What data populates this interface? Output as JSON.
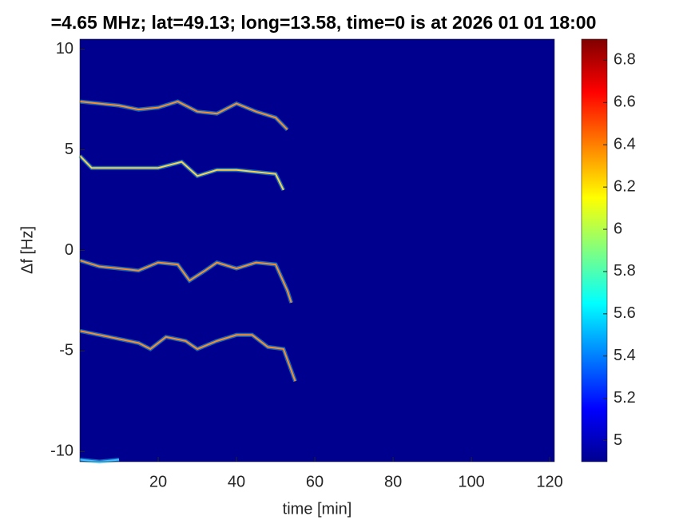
{
  "chart_data": {
    "type": "spectrogram",
    "title": "=4.65 MHz;  lat=49.13; long=13.58, time=0 is at 2026 01 01 18:00",
    "x_label": "time [min]",
    "y_label": "Δf [Hz]",
    "xlim": [
      0,
      121.2
    ],
    "xticks": [
      20,
      40,
      60,
      80,
      100,
      120
    ],
    "ylim": [
      -10.5,
      10.5
    ],
    "yticks": [
      -10,
      -5,
      0,
      5,
      10
    ],
    "background_color": "#00008f",
    "colorbar": {
      "clim": [
        4.9,
        6.9
      ],
      "ticks": [
        5,
        5.2,
        5.4,
        5.6,
        5.8,
        6,
        6.2,
        6.4,
        6.6,
        6.8
      ],
      "colormap": [
        "#00008f",
        "#0000ff",
        "#0080ff",
        "#00ffff",
        "#80ff80",
        "#ffff00",
        "#ff8000",
        "#ff0000",
        "#800000"
      ]
    },
    "traces": [
      {
        "color": "#ff8a20",
        "x": [
          0,
          5,
          10,
          15,
          20,
          25,
          30,
          35,
          40,
          45,
          50,
          53
        ],
        "values": [
          7.4,
          7.3,
          7.2,
          7.0,
          7.1,
          7.4,
          6.9,
          6.8,
          7.3,
          6.9,
          6.6,
          6.0
        ]
      },
      {
        "color": "#ffd040",
        "x": [
          0,
          3,
          10,
          20,
          26,
          30,
          35,
          40,
          45,
          50,
          52
        ],
        "values": [
          4.7,
          4.1,
          4.1,
          4.1,
          4.4,
          3.7,
          4.0,
          4.0,
          3.9,
          3.8,
          3.0
        ]
      },
      {
        "color": "#ff8a20",
        "x": [
          0,
          5,
          10,
          15,
          20,
          25,
          28,
          32,
          35,
          40,
          45,
          50,
          53,
          54
        ],
        "values": [
          -0.5,
          -0.8,
          -0.9,
          -1.0,
          -0.6,
          -0.7,
          -1.5,
          -1.0,
          -0.6,
          -0.9,
          -0.6,
          -0.7,
          -2.0,
          -2.6
        ]
      },
      {
        "color": "#ff8a20",
        "x": [
          0,
          5,
          10,
          15,
          18,
          22,
          27,
          30,
          35,
          40,
          44,
          48,
          52,
          55
        ],
        "values": [
          -4.0,
          -4.2,
          -4.4,
          -4.6,
          -4.9,
          -4.3,
          -4.5,
          -4.9,
          -4.5,
          -4.2,
          -4.2,
          -4.8,
          -4.9,
          -6.5
        ]
      },
      {
        "color": "#40c0ff",
        "x": [
          0,
          5,
          10
        ],
        "values": [
          -10.4,
          -10.5,
          -10.4
        ]
      }
    ]
  }
}
